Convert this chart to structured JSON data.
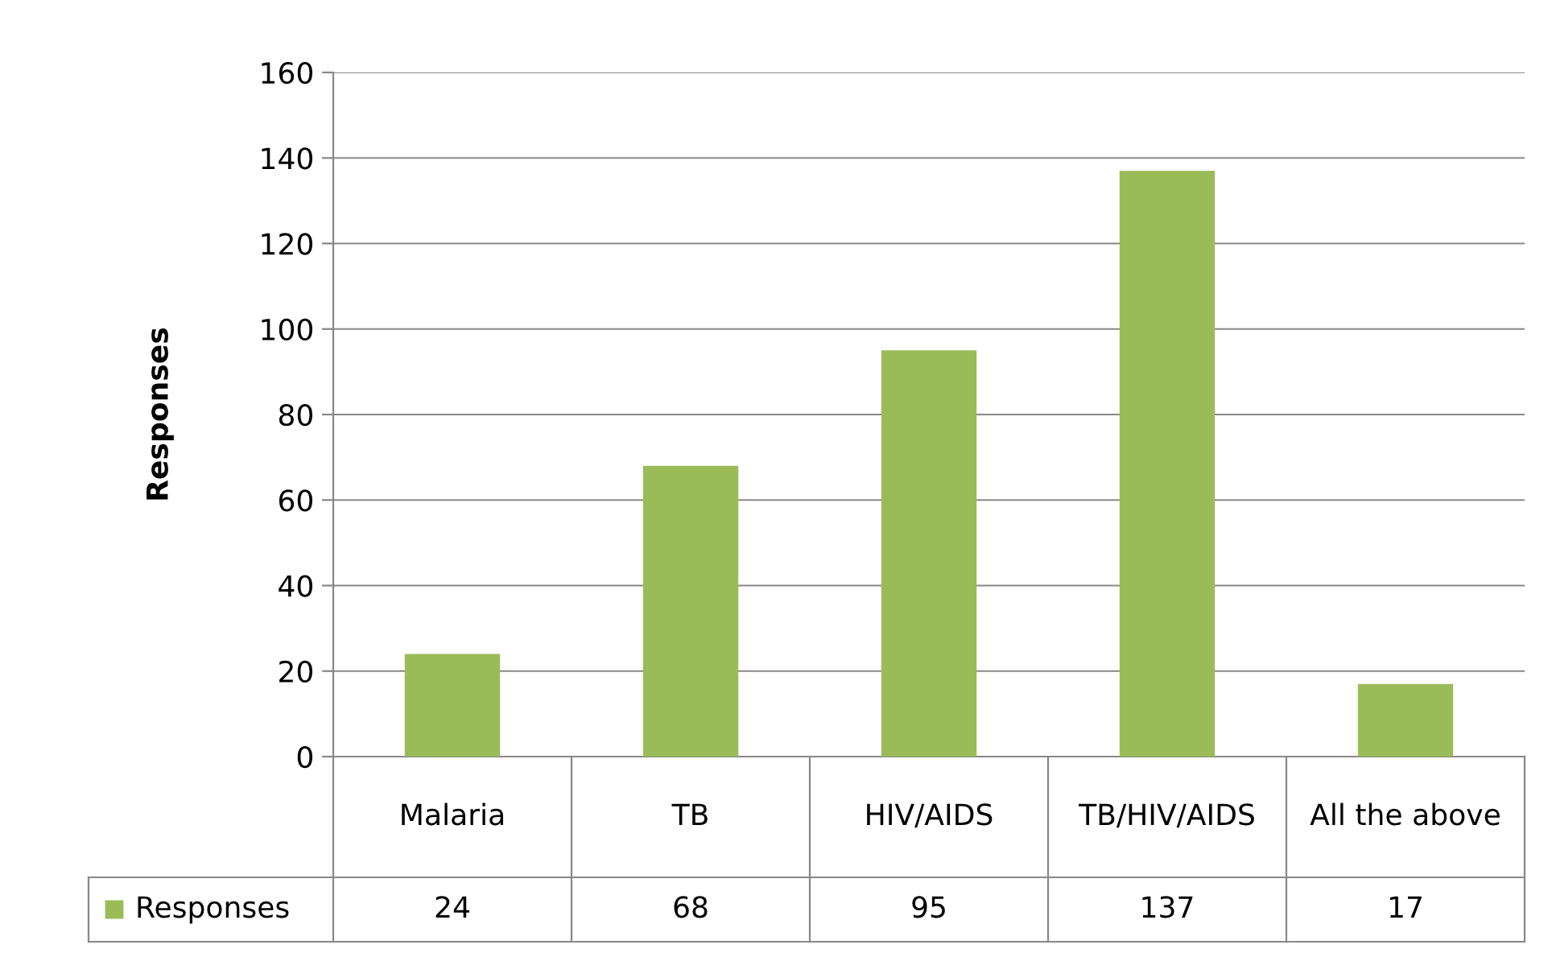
{
  "chart_data": {
    "type": "bar",
    "ylabel": "Responses",
    "categories": [
      "Malaria",
      "TB",
      "HIV/AIDS",
      "TB/HIV/AIDS",
      "All the above"
    ],
    "series": [
      {
        "name": "Responses",
        "color": "#9bbb59",
        "values": [
          24,
          68,
          95,
          137,
          17
        ]
      }
    ],
    "ylim": [
      0,
      160
    ],
    "yticks": [
      0,
      20,
      40,
      60,
      80,
      100,
      120,
      140,
      160
    ],
    "grid": "y",
    "data_labels": true
  }
}
